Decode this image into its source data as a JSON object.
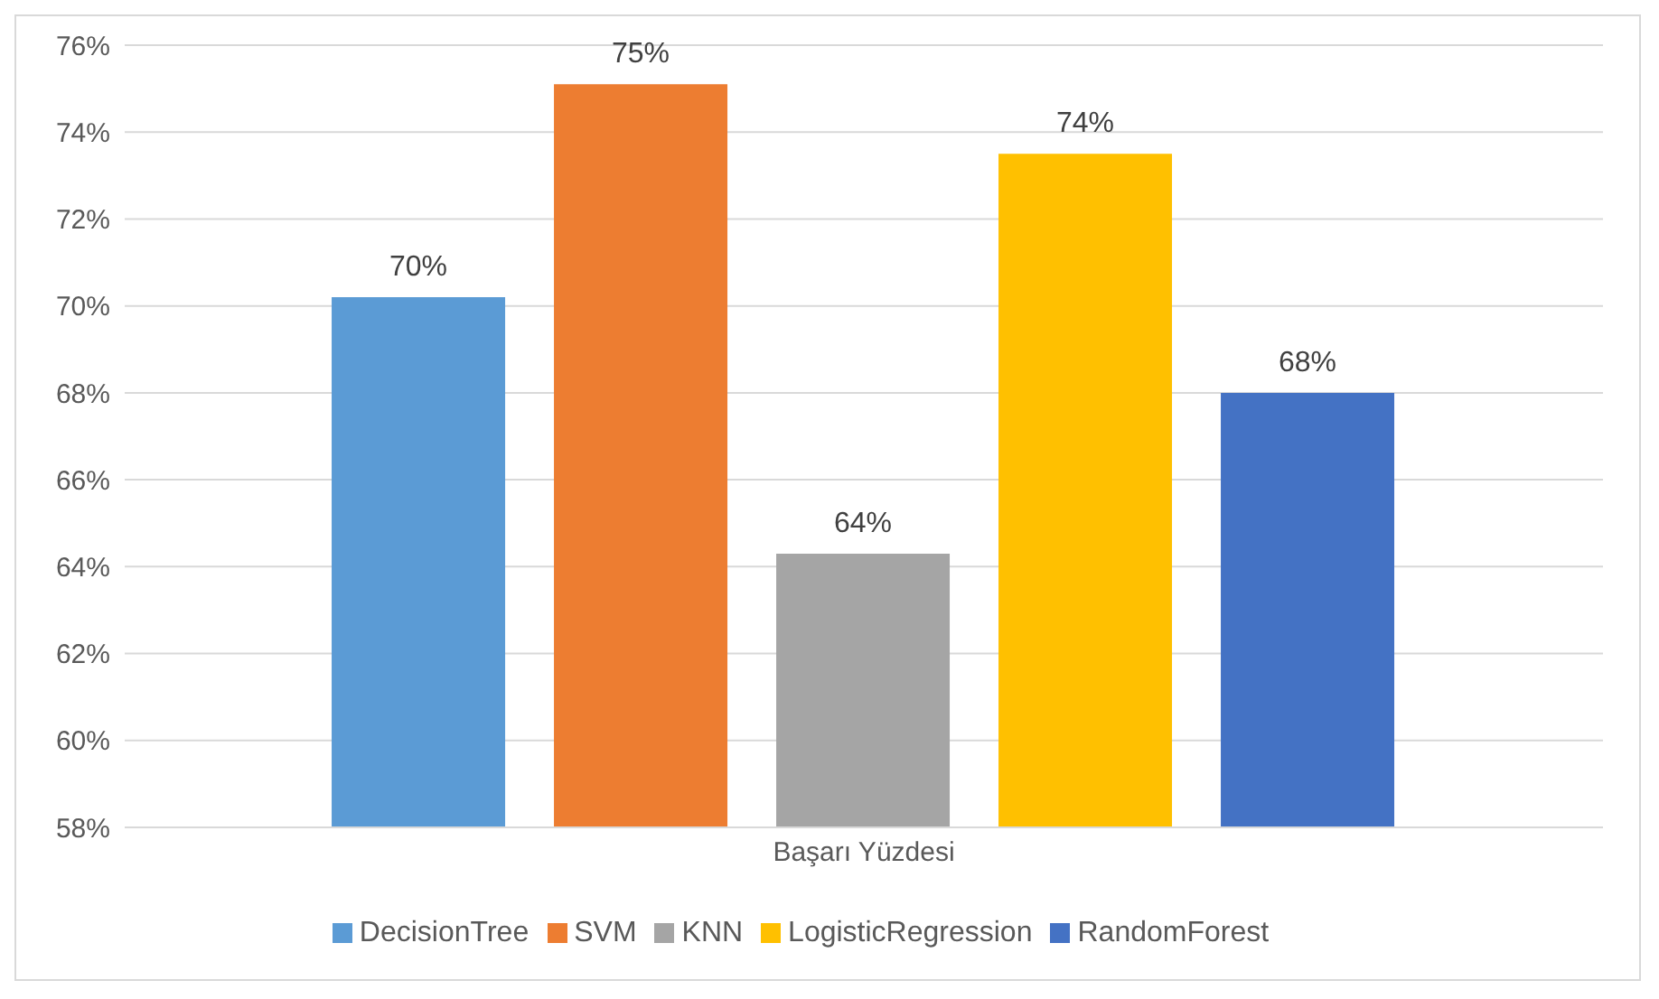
{
  "chart_data": {
    "type": "bar",
    "categories": [
      "Başarı Yüzdesi"
    ],
    "series": [
      {
        "name": "DecisionTree",
        "color": "#5b9bd5",
        "values": [
          70.2
        ],
        "value_labels": [
          "70%"
        ]
      },
      {
        "name": "SVM",
        "color": "#ed7d31",
        "values": [
          75.1
        ],
        "value_labels": [
          "75%"
        ]
      },
      {
        "name": "KNN",
        "color": "#a5a5a5",
        "values": [
          64.3
        ],
        "value_labels": [
          "64%"
        ]
      },
      {
        "name": "LogisticRegression",
        "color": "#ffc000",
        "values": [
          73.5
        ],
        "value_labels": [
          "74%"
        ]
      },
      {
        "name": "RandomForest",
        "color": "#4472c4",
        "values": [
          68.0
        ],
        "value_labels": [
          "68%"
        ]
      }
    ],
    "ylim": [
      58,
      76
    ],
    "yticks": [
      {
        "value": 58,
        "label": "58%"
      },
      {
        "value": 60,
        "label": "60%"
      },
      {
        "value": 62,
        "label": "62%"
      },
      {
        "value": 64,
        "label": "64%"
      },
      {
        "value": 66,
        "label": "66%"
      },
      {
        "value": 68,
        "label": "68%"
      },
      {
        "value": 70,
        "label": "70%"
      },
      {
        "value": 72,
        "label": "72%"
      },
      {
        "value": 74,
        "label": "74%"
      },
      {
        "value": 76,
        "label": "76%"
      }
    ],
    "grid": "y",
    "legend": "bottom"
  }
}
